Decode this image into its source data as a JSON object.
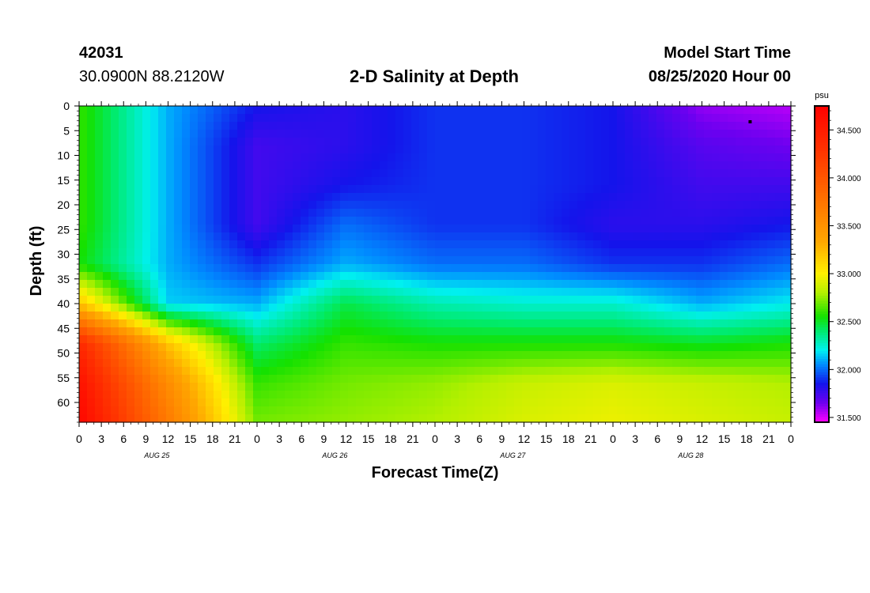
{
  "header": {
    "station_id": "42031",
    "location": "30.0900N 88.2120W",
    "title": "2-D Salinity at Depth",
    "model_start_label": "Model Start Time",
    "model_start_value": "08/25/2020 Hour 00"
  },
  "chart_data": {
    "type": "heatmap",
    "title": "2-D Salinity at Depth",
    "xlabel": "Forecast Time(Z)",
    "ylabel": "Depth (ft)",
    "units": "psu",
    "x_range_hours": [
      0,
      96
    ],
    "y_range_ft": [
      0,
      64
    ],
    "x_tick_labels": [
      "0",
      "3",
      "6",
      "9",
      "12",
      "15",
      "18",
      "21",
      "0",
      "3",
      "6",
      "9",
      "12",
      "15",
      "18",
      "21",
      "0",
      "3",
      "6",
      "9",
      "12",
      "15",
      "18",
      "21",
      "0",
      "3",
      "6",
      "9",
      "12",
      "15",
      "18",
      "21",
      "0"
    ],
    "day_labels": [
      "AUG 25",
      "AUG 26",
      "AUG 27",
      "AUG 28"
    ],
    "y_ticks": [
      0,
      5,
      10,
      15,
      20,
      25,
      30,
      35,
      40,
      45,
      50,
      55,
      60
    ],
    "y_tick_labels": [
      "0",
      "5",
      "10",
      "15",
      "20",
      "25",
      "30",
      "35",
      "40",
      "45",
      "50",
      "55",
      "60"
    ],
    "colorbar": {
      "min": 31.45,
      "max": 34.75,
      "labels": [
        "34.500",
        "34.000",
        "33.500",
        "33.000",
        "32.500",
        "32.000",
        "31.500"
      ],
      "label_values": [
        34.5,
        34.0,
        33.5,
        33.0,
        32.5,
        32.0,
        31.5
      ]
    },
    "depths_ft": [
      0,
      8,
      16,
      24,
      32,
      40,
      48,
      56,
      64
    ],
    "hours": [
      0,
      12,
      24,
      36,
      48,
      60,
      72,
      84,
      96
    ],
    "salinity_psu": [
      [
        32.6,
        32.1,
        31.85,
        31.8,
        31.9,
        31.9,
        31.85,
        31.6,
        31.55
      ],
      [
        32.6,
        32.1,
        31.75,
        31.8,
        31.9,
        31.9,
        31.85,
        31.7,
        31.65
      ],
      [
        32.6,
        32.1,
        31.75,
        31.85,
        31.9,
        31.9,
        31.85,
        31.75,
        31.75
      ],
      [
        32.6,
        32.1,
        31.75,
        32.0,
        31.9,
        31.9,
        31.8,
        31.8,
        31.85
      ],
      [
        32.55,
        32.1,
        31.9,
        32.1,
        32.0,
        32.0,
        31.9,
        31.9,
        32.0
      ],
      [
        33.2,
        32.15,
        32.1,
        32.45,
        32.3,
        32.25,
        32.25,
        32.1,
        32.2
      ],
      [
        34.4,
        33.2,
        32.4,
        32.6,
        32.55,
        32.55,
        32.55,
        32.5,
        32.55
      ],
      [
        34.6,
        33.55,
        32.6,
        32.7,
        32.75,
        32.85,
        32.9,
        32.85,
        32.8
      ],
      [
        34.7,
        33.7,
        32.7,
        32.75,
        32.8,
        32.9,
        32.95,
        32.9,
        32.85
      ]
    ],
    "marker": {
      "hour": 90.5,
      "depth_ft": 3.2
    }
  }
}
